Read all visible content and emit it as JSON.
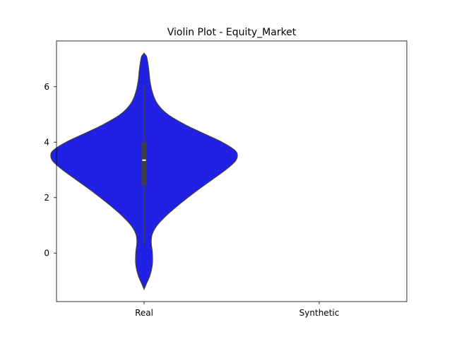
{
  "chart_data": {
    "type": "violin",
    "title": "Violin Plot - Equity_Market",
    "xlabel": "",
    "ylabel": "",
    "categories": [
      "Real",
      "Synthetic"
    ],
    "yticks": [
      0,
      2,
      4,
      6
    ],
    "ylim": [
      -1.75,
      7.65
    ],
    "grid": false,
    "violins": [
      {
        "category": "Real",
        "color": "#2121e6",
        "edge_color": "#3f3f3f",
        "quartiles": {
          "q1": 2.45,
          "median": 3.35,
          "q3": 4.0
        },
        "whiskers": {
          "low": 0.3,
          "high": 6.05
        },
        "density_profile": [
          [
            -1.3,
            0.0
          ],
          [
            -1.1,
            0.02
          ],
          [
            -0.8,
            0.05
          ],
          [
            -0.4,
            0.07
          ],
          [
            0.0,
            0.07
          ],
          [
            0.4,
            0.06
          ],
          [
            0.7,
            0.07
          ],
          [
            1.0,
            0.11
          ],
          [
            1.4,
            0.2
          ],
          [
            1.8,
            0.31
          ],
          [
            2.2,
            0.43
          ],
          [
            2.6,
            0.56
          ],
          [
            3.0,
            0.69
          ],
          [
            3.3,
            0.77
          ],
          [
            3.5,
            0.79
          ],
          [
            3.7,
            0.77
          ],
          [
            4.0,
            0.66
          ],
          [
            4.3,
            0.51
          ],
          [
            4.6,
            0.36
          ],
          [
            5.0,
            0.2
          ],
          [
            5.4,
            0.11
          ],
          [
            5.8,
            0.07
          ],
          [
            6.2,
            0.05
          ],
          [
            6.6,
            0.04
          ],
          [
            6.9,
            0.03
          ],
          [
            7.1,
            0.02
          ],
          [
            7.2,
            0.0
          ]
        ]
      }
    ]
  }
}
